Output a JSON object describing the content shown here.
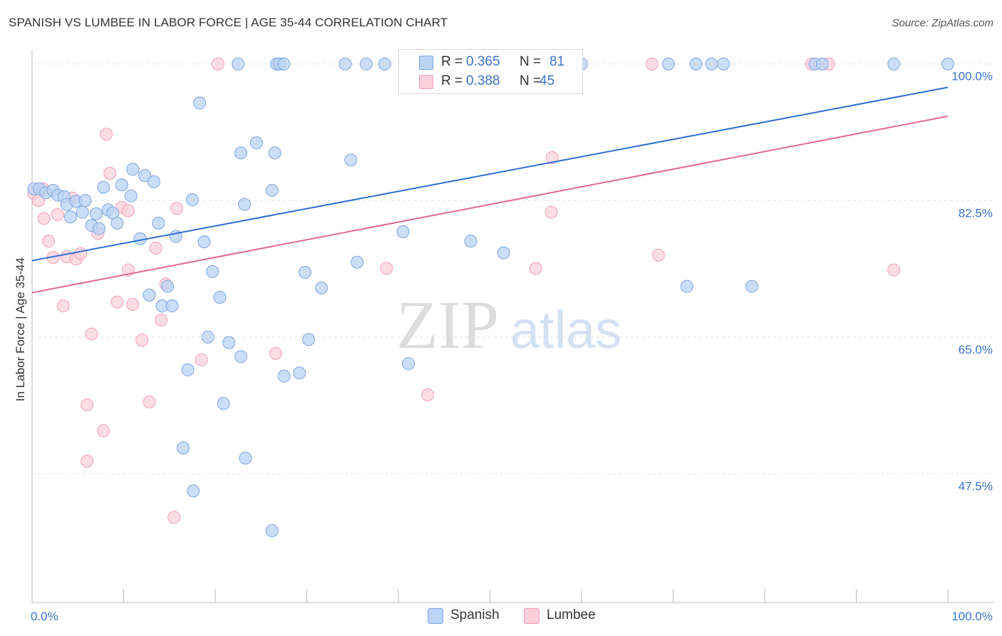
{
  "header": {
    "title": "SPANISH VS LUMBEE IN LABOR FORCE | AGE 35-44 CORRELATION CHART",
    "source": "Source: ZipAtlas.com"
  },
  "stats": {
    "spanish": {
      "r_label": "R =",
      "r_value": "0.365",
      "n_label": "N =",
      "n_value": "81"
    },
    "lumbee": {
      "r_label": "R =",
      "r_value": "0.388",
      "n_label": "N =",
      "n_value": "45"
    }
  },
  "legend": {
    "spanish": "Spanish",
    "lumbee": "Lumbee"
  },
  "colors": {
    "spanish_fill": "#bad3f5",
    "spanish_stroke": "#7fa6dd",
    "spanish_line": "#2f6fcf",
    "lumbee_fill": "#fbd0dc",
    "lumbee_stroke": "#eea0b6",
    "lumbee_line": "#e06a92",
    "tick_label": "#3a74c9",
    "grid": "#e3e3e3"
  },
  "chart_data": {
    "type": "scatter",
    "title": "SPANISH VS LUMBEE IN LABOR FORCE | AGE 35-44 CORRELATION CHART",
    "xlabel": "",
    "ylabel": "In Labor Force | Age 35-44",
    "x_tick_labels": [
      "0.0%",
      "100.0%"
    ],
    "y_tick_labels": [
      "100.0%",
      "82.5%",
      "65.0%",
      "47.5%"
    ],
    "y_ticks": [
      100.0,
      82.5,
      65.0,
      47.5
    ],
    "xlim": [
      0,
      100
    ],
    "ylim": [
      31.0,
      101.8
    ],
    "grid": true,
    "legend_position": "bottom-center",
    "watermark": {
      "zip": "ZIP",
      "atlas": "atlas"
    },
    "series": [
      {
        "name": "Spanish",
        "trend": [
          [
            0,
            74.8
          ],
          [
            100,
            97.0
          ]
        ],
        "points": [
          [
            0.2,
            84.0
          ],
          [
            0.8,
            84.0
          ],
          [
            1.5,
            83.5
          ],
          [
            2.3,
            83.8
          ],
          [
            2.8,
            83.2
          ],
          [
            3.5,
            83.0
          ],
          [
            3.8,
            82.0
          ],
          [
            4.2,
            80.4
          ],
          [
            4.8,
            82.4
          ],
          [
            5.5,
            81.0
          ],
          [
            5.8,
            82.5
          ],
          [
            6.5,
            79.3
          ],
          [
            7.0,
            80.8
          ],
          [
            7.3,
            78.9
          ],
          [
            7.8,
            84.2
          ],
          [
            8.3,
            81.3
          ],
          [
            8.8,
            80.9
          ],
          [
            9.3,
            79.6
          ],
          [
            9.8,
            84.5
          ],
          [
            10.8,
            83.1
          ],
          [
            11.0,
            86.5
          ],
          [
            11.8,
            77.6
          ],
          [
            12.3,
            85.7
          ],
          [
            12.8,
            70.4
          ],
          [
            13.3,
            84.9
          ],
          [
            13.8,
            79.6
          ],
          [
            14.2,
            69.0
          ],
          [
            14.8,
            71.5
          ],
          [
            15.3,
            69.0
          ],
          [
            15.7,
            77.9
          ],
          [
            17.0,
            60.8
          ],
          [
            17.5,
            82.6
          ],
          [
            18.3,
            95.0
          ],
          [
            18.8,
            77.2
          ],
          [
            19.2,
            65.0
          ],
          [
            19.7,
            73.4
          ],
          [
            20.5,
            70.1
          ],
          [
            20.9,
            56.5
          ],
          [
            21.5,
            64.3
          ],
          [
            22.5,
            100.0
          ],
          [
            22.8,
            88.6
          ],
          [
            23.2,
            82.0
          ],
          [
            24.5,
            89.9
          ],
          [
            26.2,
            83.8
          ],
          [
            26.5,
            88.6
          ],
          [
            26.7,
            100.0
          ],
          [
            27.0,
            100.0
          ],
          [
            27.5,
            100.0
          ],
          [
            29.2,
            60.4
          ],
          [
            29.8,
            73.3
          ],
          [
            30.2,
            64.7
          ],
          [
            31.6,
            71.3
          ],
          [
            34.2,
            100.0
          ],
          [
            34.8,
            87.7
          ],
          [
            35.5,
            74.6
          ],
          [
            36.5,
            100.0
          ],
          [
            38.5,
            100.0
          ],
          [
            40.5,
            78.5
          ],
          [
            41.1,
            61.6
          ],
          [
            47.9,
            77.3
          ],
          [
            48.0,
            100.0
          ],
          [
            51.5,
            75.8
          ],
          [
            52.3,
            100.0
          ],
          [
            55.0,
            100.0
          ],
          [
            60.0,
            100.0
          ],
          [
            69.5,
            100.0
          ],
          [
            71.5,
            71.5
          ],
          [
            72.5,
            100.0
          ],
          [
            74.2,
            100.0
          ],
          [
            75.5,
            100.0
          ],
          [
            78.6,
            71.5
          ],
          [
            85.5,
            100.0
          ],
          [
            86.3,
            100.0
          ],
          [
            94.1,
            100.0
          ],
          [
            100.0,
            100.0
          ],
          [
            23.3,
            49.5
          ],
          [
            16.5,
            50.8
          ],
          [
            17.6,
            45.3
          ],
          [
            26.2,
            40.2
          ],
          [
            22.8,
            62.5
          ],
          [
            27.5,
            60.0
          ]
        ]
      },
      {
        "name": "Lumbee",
        "trend": [
          [
            0,
            70.7
          ],
          [
            100,
            93.3
          ]
        ],
        "points": [
          [
            0.2,
            83.4
          ],
          [
            0.7,
            82.5
          ],
          [
            1.3,
            80.2
          ],
          [
            1.8,
            77.3
          ],
          [
            2.3,
            75.2
          ],
          [
            2.8,
            80.7
          ],
          [
            3.4,
            69.0
          ],
          [
            3.8,
            75.3
          ],
          [
            4.4,
            82.8
          ],
          [
            4.8,
            75.0
          ],
          [
            5.3,
            75.7
          ],
          [
            6.0,
            56.3
          ],
          [
            6.5,
            65.4
          ],
          [
            7.2,
            78.3
          ],
          [
            7.8,
            53.0
          ],
          [
            8.1,
            91.0
          ],
          [
            8.5,
            86.0
          ],
          [
            9.3,
            69.5
          ],
          [
            9.8,
            81.6
          ],
          [
            10.5,
            73.6
          ],
          [
            11.0,
            69.2
          ],
          [
            12.0,
            64.6
          ],
          [
            12.8,
            56.7
          ],
          [
            13.5,
            76.4
          ],
          [
            14.1,
            67.2
          ],
          [
            14.6,
            71.8
          ],
          [
            15.5,
            41.9
          ],
          [
            15.8,
            81.5
          ],
          [
            18.5,
            62.1
          ],
          [
            20.3,
            100.0
          ],
          [
            26.6,
            62.9
          ],
          [
            38.7,
            73.8
          ],
          [
            41.5,
            100.0
          ],
          [
            43.2,
            57.6
          ],
          [
            55.0,
            73.8
          ],
          [
            56.7,
            81.0
          ],
          [
            56.8,
            88.0
          ],
          [
            67.7,
            100.0
          ],
          [
            68.4,
            75.5
          ],
          [
            85.1,
            100.0
          ],
          [
            87.0,
            100.0
          ],
          [
            94.1,
            73.6
          ],
          [
            6.0,
            49.1
          ],
          [
            10.5,
            81.2
          ],
          [
            1.2,
            84.0
          ]
        ]
      }
    ]
  }
}
